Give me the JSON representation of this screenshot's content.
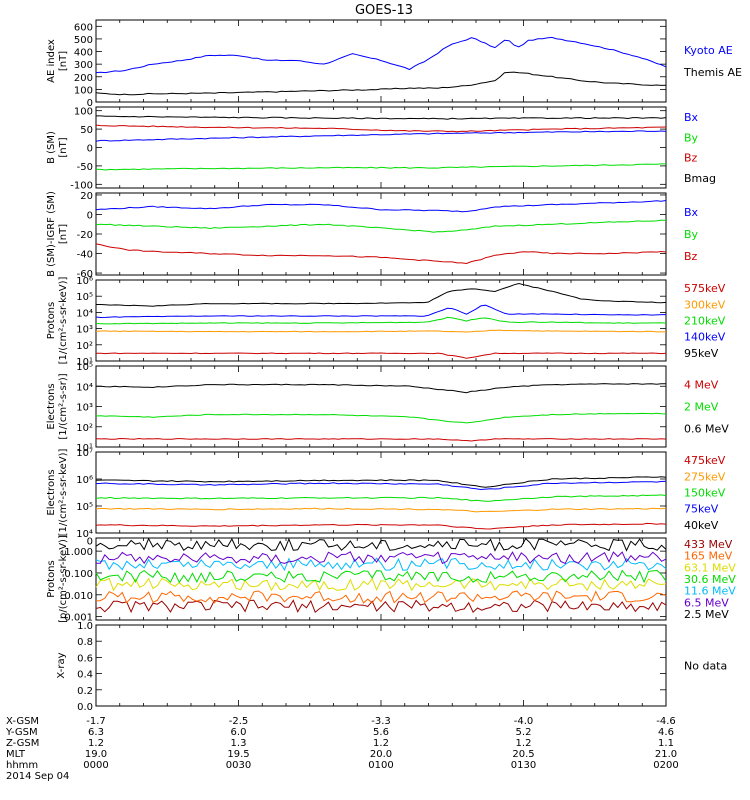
{
  "title": "GOES-13",
  "chart_data": {
    "type": "line",
    "title": "GOES-13",
    "x_range": [
      "0000",
      "0200"
    ],
    "panels": [
      {
        "id": "ae",
        "ylabel": [
          "AE index",
          "[nT]"
        ],
        "yscale": "linear",
        "ylim": [
          0,
          650
        ],
        "ticks": [
          0,
          100,
          200,
          300,
          400,
          500,
          600
        ],
        "tick_labels": [
          "0",
          "100",
          "200",
          "300",
          "400",
          "500",
          "600"
        ],
        "series": [
          {
            "name": "Kyoto AE",
            "color": "#0000ff",
            "t": [
              0,
              0.05,
              0.1,
              0.15,
              0.2,
              0.25,
              0.3,
              0.35,
              0.4,
              0.45,
              0.5,
              0.55,
              0.58,
              0.62,
              0.66,
              0.7,
              0.72,
              0.74,
              0.76,
              0.8,
              0.85,
              0.9,
              0.95,
              1.0
            ],
            "v": [
              230,
              250,
              300,
              330,
              370,
              370,
              330,
              330,
              300,
              380,
              330,
              260,
              330,
              450,
              510,
              430,
              500,
              430,
              490,
              510,
              470,
              420,
              360,
              280
            ]
          },
          {
            "name": "Themis AE",
            "color": "#000000",
            "t": [
              0,
              0.05,
              0.1,
              0.2,
              0.3,
              0.4,
              0.5,
              0.55,
              0.6,
              0.65,
              0.7,
              0.72,
              0.75,
              0.8,
              0.85,
              0.9,
              0.95,
              1.0
            ],
            "v": [
              70,
              60,
              65,
              70,
              80,
              90,
              100,
              110,
              110,
              130,
              170,
              240,
              230,
              200,
              170,
              150,
              140,
              130
            ]
          }
        ]
      },
      {
        "id": "bsm",
        "ylabel": [
          "B (SM)",
          "[nT]"
        ],
        "yscale": "linear",
        "ylim": [
          -110,
          110
        ],
        "ticks": [
          -100,
          -50,
          0,
          50,
          100
        ],
        "tick_labels": [
          "-100",
          "-50",
          "0",
          "50",
          "100"
        ],
        "series": [
          {
            "name": "Bx",
            "color": "#0000ff",
            "t": [
              0,
              0.2,
              0.4,
              0.6,
              0.8,
              1.0
            ],
            "v": [
              18,
              25,
              32,
              38,
              42,
              45
            ]
          },
          {
            "name": "By",
            "color": "#00dd00",
            "t": [
              0,
              0.2,
              0.4,
              0.6,
              0.8,
              1.0
            ],
            "v": [
              -60,
              -57,
              -55,
              -55,
              -50,
              -45
            ]
          },
          {
            "name": "Bz",
            "color": "#cc0000",
            "t": [
              0,
              0.2,
              0.4,
              0.55,
              0.65,
              0.8,
              1.0
            ],
            "v": [
              60,
              55,
              52,
              45,
              44,
              50,
              55
            ]
          },
          {
            "name": "Bmag",
            "color": "#000000",
            "t": [
              0,
              0.2,
              0.4,
              0.6,
              0.8,
              1.0
            ],
            "v": [
              85,
              82,
              80,
              78,
              80,
              80
            ]
          }
        ]
      },
      {
        "id": "bigrf",
        "ylabel": [
          "B (SM)-IGRF (SM)",
          "[nT]"
        ],
        "yscale": "linear",
        "ylim": [
          -62,
          22
        ],
        "ticks": [
          -60,
          -40,
          -20,
          0,
          20
        ],
        "tick_labels": [
          "-60",
          "-40",
          "-20",
          "0",
          "20"
        ],
        "series": [
          {
            "name": "Bx",
            "color": "#0000ff",
            "t": [
              0,
              0.1,
              0.2,
              0.3,
              0.4,
              0.5,
              0.6,
              0.65,
              0.7,
              0.8,
              0.9,
              1.0
            ],
            "v": [
              5,
              8,
              6,
              10,
              10,
              5,
              4,
              3,
              8,
              10,
              12,
              14
            ]
          },
          {
            "name": "By",
            "color": "#00dd00",
            "t": [
              0,
              0.1,
              0.2,
              0.3,
              0.4,
              0.5,
              0.6,
              0.65,
              0.7,
              0.8,
              0.9,
              1.0
            ],
            "v": [
              -10,
              -12,
              -14,
              -12,
              -10,
              -14,
              -18,
              -16,
              -12,
              -10,
              -8,
              -6
            ]
          },
          {
            "name": "Bz",
            "color": "#cc0000",
            "t": [
              0,
              0.05,
              0.1,
              0.2,
              0.3,
              0.4,
              0.5,
              0.6,
              0.65,
              0.7,
              0.75,
              0.8,
              0.9,
              1.0
            ],
            "v": [
              -30,
              -36,
              -38,
              -40,
              -42,
              -42,
              -44,
              -48,
              -50,
              -42,
              -38,
              -40,
              -40,
              -38
            ]
          }
        ]
      },
      {
        "id": "protons_low",
        "ylabel": [
          "Protons",
          "[1/(cm²-s-sr-keV)]"
        ],
        "yscale": "log",
        "ylim": [
          10,
          1000000
        ],
        "ticks": [
          10,
          100,
          1000,
          10000,
          100000,
          1000000
        ],
        "tick_labels": [
          "10¹",
          "10²",
          "10³",
          "10⁴",
          "10⁵",
          "10⁶"
        ],
        "series": [
          {
            "name": "575keV",
            "color": "#cc0000",
            "t": [
              0,
              0.2,
              0.4,
              0.6,
              0.65,
              0.7,
              0.8,
              1.0
            ],
            "v": [
              30,
              30,
              30,
              30,
              15,
              30,
              30,
              30
            ]
          },
          {
            "name": "300keV",
            "color": "#ff9900",
            "t": [
              0,
              0.2,
              0.4,
              0.6,
              0.65,
              0.7,
              0.8,
              1.0
            ],
            "v": [
              700,
              650,
              650,
              700,
              600,
              800,
              700,
              650
            ]
          },
          {
            "name": "210keV",
            "color": "#00dd00",
            "t": [
              0,
              0.2,
              0.4,
              0.58,
              0.62,
              0.65,
              0.68,
              0.72,
              0.8,
              0.9,
              1.0
            ],
            "v": [
              2000,
              2200,
              2200,
              2500,
              5000,
              3000,
              5000,
              2500,
              2500,
              2200,
              2200
            ]
          },
          {
            "name": "140keV",
            "color": "#0000ff",
            "t": [
              0,
              0.2,
              0.4,
              0.58,
              0.62,
              0.65,
              0.68,
              0.72,
              0.8,
              0.9,
              1.0
            ],
            "v": [
              5000,
              6000,
              6000,
              6000,
              20000,
              8000,
              30000,
              8000,
              8000,
              7000,
              7000
            ]
          },
          {
            "name": "95keV",
            "color": "#000000",
            "t": [
              0,
              0.1,
              0.2,
              0.4,
              0.58,
              0.62,
              0.66,
              0.7,
              0.74,
              0.78,
              0.85,
              0.9,
              1.0
            ],
            "v": [
              30000,
              25000,
              35000,
              35000,
              40000,
              200000,
              300000,
              200000,
              600000,
              300000,
              70000,
              50000,
              40000
            ]
          }
        ]
      },
      {
        "id": "electrons_high",
        "ylabel": [
          "Electrons",
          "[1/(cm²-s-sr)]"
        ],
        "yscale": "log",
        "ylim": [
          10,
          100000
        ],
        "ticks": [
          10,
          100,
          1000,
          10000,
          100000
        ],
        "tick_labels": [
          "10¹",
          "10²",
          "10³",
          "10⁴",
          "10⁵"
        ],
        "series": [
          {
            "name": "4 MeV",
            "color": "#cc0000",
            "t": [
              0,
              0.2,
              0.4,
              0.6,
              0.65,
              0.7,
              0.8,
              1.0
            ],
            "v": [
              25,
              25,
              25,
              25,
              20,
              25,
              25,
              25
            ]
          },
          {
            "name": "2 MeV",
            "color": "#00dd00",
            "t": [
              0,
              0.1,
              0.2,
              0.4,
              0.55,
              0.65,
              0.72,
              0.8,
              0.9,
              1.0
            ],
            "v": [
              350,
              300,
              400,
              400,
              300,
              150,
              300,
              400,
              450,
              450
            ]
          },
          {
            "name": "0.6 MeV",
            "color": "#000000",
            "t": [
              0,
              0.1,
              0.2,
              0.4,
              0.55,
              0.65,
              0.72,
              0.8,
              0.9,
              1.0
            ],
            "v": [
              10000,
              9000,
              12000,
              12000,
              10000,
              5000,
              9000,
              12000,
              13000,
              13000
            ]
          }
        ]
      },
      {
        "id": "electrons_low",
        "ylabel": [
          "Electrons",
          "[1/(cm²-s-sr-keV)]"
        ],
        "yscale": "log",
        "ylim": [
          10000,
          10000000
        ],
        "ticks": [
          10000,
          100000,
          1000000,
          10000000
        ],
        "tick_labels": [
          "10⁴",
          "10⁵",
          "10⁶",
          "10⁷"
        ],
        "series": [
          {
            "name": "475keV",
            "color": "#cc0000",
            "t": [
              0,
              0.2,
              0.4,
              0.6,
              0.68,
              0.8,
              1.0
            ],
            "v": [
              20000,
              18000,
              20000,
              20000,
              14000,
              20000,
              22000
            ]
          },
          {
            "name": "275keV",
            "color": "#ff9900",
            "t": [
              0,
              0.2,
              0.4,
              0.6,
              0.68,
              0.8,
              1.0
            ],
            "v": [
              80000,
              75000,
              80000,
              75000,
              60000,
              75000,
              80000
            ]
          },
          {
            "name": "150keV",
            "color": "#00dd00",
            "t": [
              0,
              0.2,
              0.4,
              0.6,
              0.68,
              0.8,
              1.0
            ],
            "v": [
              200000,
              190000,
              200000,
              200000,
              150000,
              220000,
              250000
            ]
          },
          {
            "name": "75keV",
            "color": "#0000ff",
            "t": [
              0,
              0.2,
              0.4,
              0.6,
              0.68,
              0.8,
              1.0
            ],
            "v": [
              700000,
              600000,
              700000,
              650000,
              400000,
              700000,
              800000
            ]
          },
          {
            "name": "40keV",
            "color": "#000000",
            "t": [
              0,
              0.2,
              0.4,
              0.6,
              0.68,
              0.8,
              1.0
            ],
            "v": [
              900000,
              800000,
              900000,
              900000,
              500000,
              1000000,
              1200000
            ]
          }
        ]
      },
      {
        "id": "protons_high",
        "ylabel": [
          "Protons",
          "[p/(cm²-s-sr-keV)]"
        ],
        "yscale": "log",
        "ylim": [
          0.0007,
          4
        ],
        "ticks": [
          0.001,
          0.01,
          0.1,
          1
        ],
        "tick_labels": [
          "0.001",
          "0.010",
          "0.100",
          "1.000"
        ],
        "extra_ticks": [
          {
            "value": 3,
            "label": "0"
          }
        ],
        "series": [
          {
            "name": "433 MeV",
            "color": "#990000",
            "noisy": true,
            "t": [
              0,
              1.0
            ],
            "v": [
              0.003,
              0.003
            ]
          },
          {
            "name": "165 MeV",
            "color": "#ff6600",
            "noisy": true,
            "t": [
              0,
              1.0
            ],
            "v": [
              0.008,
              0.008
            ]
          },
          {
            "name": "63.1 MeV",
            "color": "#dddd00",
            "noisy": true,
            "t": [
              0,
              1.0
            ],
            "v": [
              0.03,
              0.03
            ]
          },
          {
            "name": "30.6 MeV",
            "color": "#00dd00",
            "noisy": true,
            "t": [
              0,
              1.0
            ],
            "v": [
              0.07,
              0.07
            ]
          },
          {
            "name": "11.6 MeV",
            "color": "#00bbff",
            "noisy": true,
            "t": [
              0,
              1.0
            ],
            "v": [
              0.25,
              0.25
            ]
          },
          {
            "name": "6.5 MeV",
            "color": "#6600cc",
            "noisy": true,
            "t": [
              0,
              1.0
            ],
            "v": [
              0.5,
              0.5
            ]
          },
          {
            "name": "2.5 MeV",
            "color": "#000000",
            "noisy": true,
            "t": [
              0,
              1.0
            ],
            "v": [
              2.0,
              2.0
            ]
          }
        ]
      },
      {
        "id": "xray",
        "ylabel": [
          "X-ray",
          ""
        ],
        "yscale": "linear",
        "ylim": [
          0,
          1.0
        ],
        "ticks": [
          0,
          0.2,
          0.4,
          0.6,
          0.8,
          1.0
        ],
        "tick_labels": [
          "0.0",
          "0.2",
          "0.4",
          "0.6",
          "0.8",
          "1.0"
        ],
        "note": "No data",
        "series": []
      }
    ],
    "ephemeris": {
      "rows": [
        "X-GSM",
        "Y-GSM",
        "Z-GSM",
        "MLT",
        "hhmm"
      ],
      "columns": [
        [
          "-1.7",
          "6.3",
          "1.2",
          "19.0",
          "0000"
        ],
        [
          "-2.5",
          "6.0",
          "1.3",
          "19.5",
          "0030"
        ],
        [
          "-3.3",
          "5.6",
          "1.2",
          "20.0",
          "0100"
        ],
        [
          "-4.0",
          "5.2",
          "1.2",
          "20.5",
          "0130"
        ],
        [
          "-4.6",
          "4.6",
          "1.1",
          "21.0",
          "0200"
        ]
      ],
      "date": "2014 Sep 04"
    }
  }
}
